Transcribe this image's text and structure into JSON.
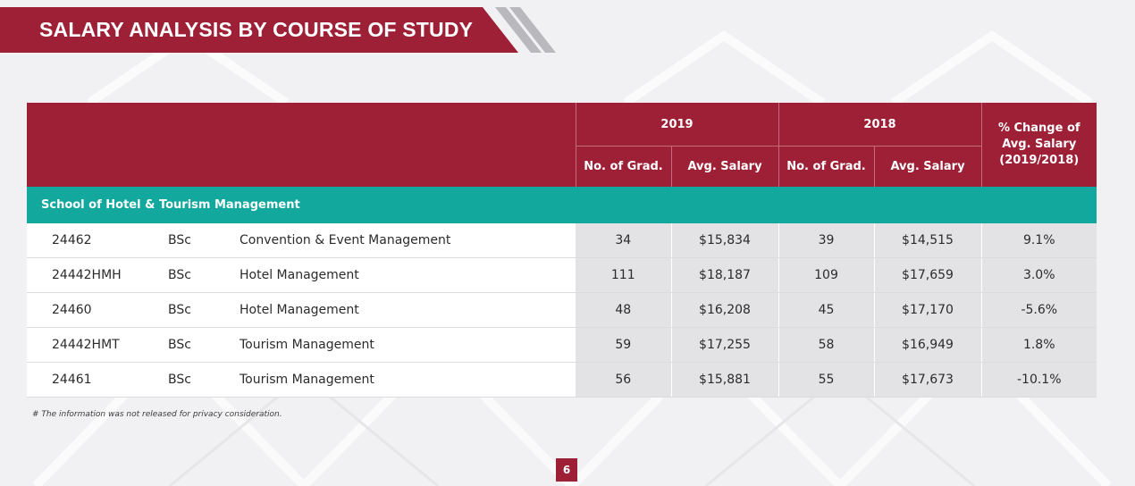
{
  "page_title": "SALARY ANALYSIS BY COURSE OF STUDY",
  "table": {
    "year_a": "2019",
    "year_b": "2018",
    "pct_header_lines": [
      "% Change of",
      "Avg. Salary",
      "(2019/2018)"
    ],
    "sub_headers": [
      "No. of Grad.",
      "Avg. Salary",
      "No. of Grad.",
      "Avg. Salary"
    ],
    "school": "School of Hotel & Tourism Management",
    "rows": [
      {
        "code": "24462",
        "degree": "BSc",
        "programme": "Convention & Event Management",
        "grad_2019": "34",
        "salary_2019": "$15,834",
        "grad_2018": "39",
        "salary_2018": "$14,515",
        "change": "9.1%"
      },
      {
        "code": "24442HMH",
        "degree": "BSc",
        "programme": "Hotel Management",
        "grad_2019": "111",
        "salary_2019": "$18,187",
        "grad_2018": "109",
        "salary_2018": "$17,659",
        "change": "3.0%"
      },
      {
        "code": "24460",
        "degree": "BSc",
        "programme": "Hotel Management",
        "grad_2019": "48",
        "salary_2019": "$16,208",
        "grad_2018": "45",
        "salary_2018": "$17,170",
        "change": "-5.6%"
      },
      {
        "code": "24442HMT",
        "degree": "BSc",
        "programme": "Tourism Management",
        "grad_2019": "59",
        "salary_2019": "$17,255",
        "grad_2018": "58",
        "salary_2018": "$16,949",
        "change": "1.8%"
      },
      {
        "code": "24461",
        "degree": "BSc",
        "programme": "Tourism Management",
        "grad_2019": "56",
        "salary_2019": "$15,881",
        "grad_2018": "55",
        "salary_2018": "$17,673",
        "change": "-10.1%"
      }
    ]
  },
  "footnote": "# The information was not released for privacy consideration.",
  "page_number": "6",
  "colors": {
    "brand": "#9d2036",
    "school_band": "#12a89d",
    "cell_shade": "#e3e3e6"
  }
}
